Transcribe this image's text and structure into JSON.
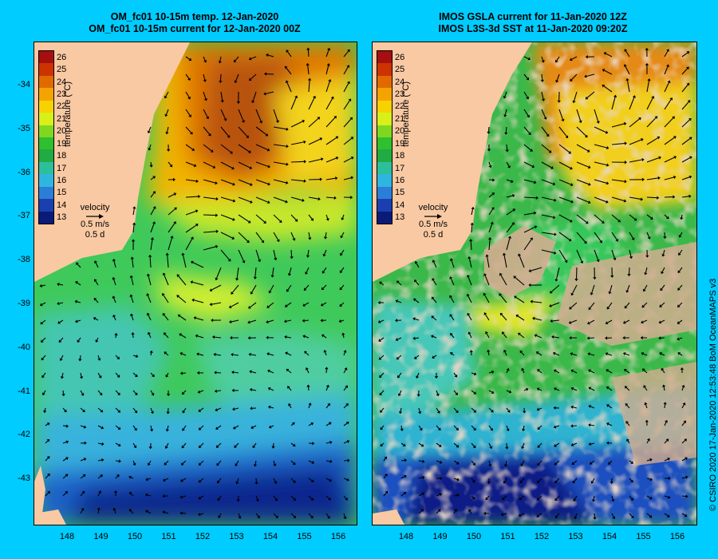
{
  "left_panel": {
    "title_line1": "OM_fc01 10-15m temp. 12-Jan-2020",
    "title_line2": "OM_fc01 10-15m current for 12-Jan-2020 00Z"
  },
  "right_panel": {
    "title_line1": "IMOS GSLA current for 11-Jan-2020 12Z",
    "title_line2": "IMOS L3S-3d SST at 11-Jan-2020 09:20Z"
  },
  "colorbar": {
    "title": "temperature (°C)",
    "labels": [
      "26",
      "25",
      "24",
      "23",
      "22",
      "21",
      "20",
      "19",
      "18",
      "17",
      "16",
      "15",
      "14",
      "13"
    ],
    "colors": [
      "#a50f0f",
      "#cc3300",
      "#e06a00",
      "#f5a300",
      "#f7d200",
      "#d8ef1a",
      "#7fd81f",
      "#2fbf2f",
      "#22aa44",
      "#2cbf9c",
      "#2fb6e0",
      "#2a7ed8",
      "#1b3fb0",
      "#0a1a78"
    ]
  },
  "velocity_legend": {
    "label": "velocity",
    "speed": "0.5 m/s",
    "duration": "0.5 d"
  },
  "latitude_ticks": [
    "-34",
    "-35",
    "-36",
    "-37",
    "-38",
    "-39",
    "-40",
    "-41",
    "-42",
    "-43"
  ],
  "longitude_ticks": [
    "148",
    "149",
    "150",
    "151",
    "152",
    "153",
    "154",
    "155",
    "156"
  ],
  "credit": "© CSIRO 2020   17-Jan-2020 12:53:48 BoM OceanMAPS v3",
  "colors": {
    "background": "#00ccff",
    "land": "#f9c9a3",
    "cloud_mask": "#d2ad8f",
    "arrow": "#000000"
  }
}
